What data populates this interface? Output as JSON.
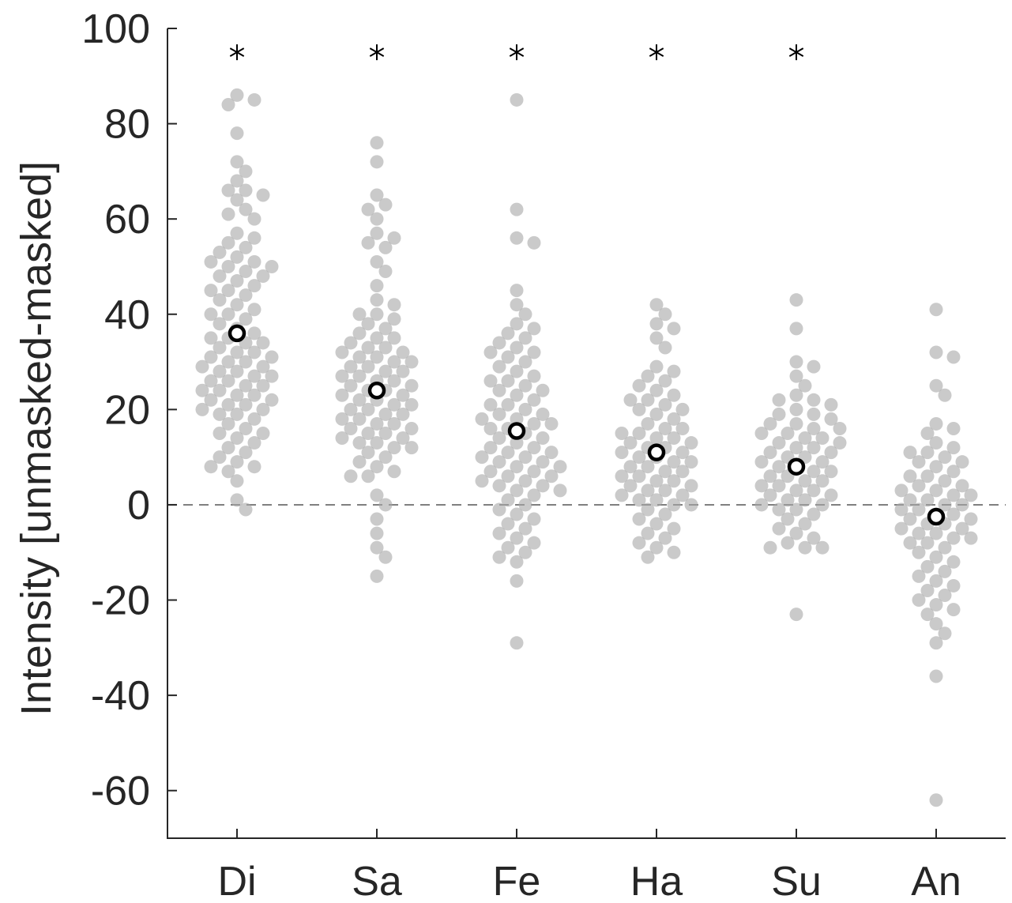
{
  "chart_data": {
    "type": "scatter",
    "title": "",
    "xlabel": "",
    "ylabel": "Intensity [unmasked-masked]",
    "categories": [
      "Di",
      "Sa",
      "Fe",
      "Ha",
      "Su",
      "An"
    ],
    "ylim": [
      -70,
      100
    ],
    "yticks": [
      -60,
      -40,
      -20,
      0,
      20,
      40,
      60,
      80,
      100
    ],
    "ytick_labels": [
      "-60",
      "-40",
      "-20",
      "0",
      "20",
      "40",
      "60",
      "80",
      "100"
    ],
    "reference_line": {
      "y": 0,
      "style": "dashed"
    },
    "means": [
      36,
      24,
      15.5,
      11,
      8,
      -2.5
    ],
    "significant": [
      true,
      true,
      true,
      true,
      true,
      false
    ],
    "significance_marker_y": 95,
    "series": [
      {
        "category": "Di",
        "values": [
          86,
          85,
          84,
          78,
          72,
          70,
          68,
          66,
          66,
          65,
          64,
          62,
          61,
          60,
          57,
          56,
          55,
          54,
          53,
          52,
          51,
          51,
          50,
          50,
          49,
          48,
          48,
          47,
          46,
          45,
          45,
          44,
          43,
          42,
          41,
          40,
          40,
          39,
          38,
          37,
          36,
          35,
          35,
          34,
          34,
          33,
          32,
          32,
          31,
          31,
          30,
          30,
          29,
          29,
          28,
          28,
          27,
          27,
          26,
          26,
          25,
          25,
          24,
          24,
          23,
          23,
          22,
          22,
          21,
          21,
          20,
          20,
          19,
          19,
          18,
          17,
          16,
          15,
          15,
          14,
          13,
          12,
          11,
          10,
          9,
          8,
          8,
          7,
          5,
          1,
          -1
        ]
      },
      {
        "category": "Sa",
        "values": [
          76,
          72,
          65,
          63,
          62,
          60,
          57,
          56,
          55,
          54,
          51,
          49,
          46,
          43,
          42,
          40,
          40,
          39,
          38,
          37,
          36,
          35,
          35,
          34,
          33,
          33,
          32,
          32,
          31,
          31,
          30,
          30,
          29,
          29,
          28,
          28,
          27,
          27,
          26,
          26,
          25,
          25,
          24,
          24,
          23,
          23,
          22,
          22,
          21,
          21,
          20,
          20,
          19,
          19,
          18,
          18,
          17,
          17,
          16,
          16,
          15,
          15,
          14,
          14,
          13,
          13,
          12,
          12,
          11,
          10,
          9,
          8,
          7,
          6,
          6,
          2,
          0,
          -3,
          -6,
          -9,
          -11,
          -15
        ]
      },
      {
        "category": "Fe",
        "values": [
          85,
          62,
          56,
          55,
          45,
          42,
          40,
          38,
          37,
          36,
          35,
          34,
          33,
          32,
          32,
          31,
          30,
          29,
          28,
          27,
          26,
          26,
          25,
          24,
          24,
          23,
          22,
          21,
          21,
          20,
          19,
          19,
          18,
          18,
          17,
          17,
          16,
          16,
          15,
          14,
          14,
          13,
          12,
          12,
          11,
          11,
          10,
          10,
          9,
          9,
          8,
          8,
          7,
          7,
          6,
          6,
          5,
          5,
          4,
          4,
          3,
          3,
          2,
          1,
          0,
          -1,
          -2,
          -3,
          -4,
          -5,
          -6,
          -7,
          -8,
          -9,
          -10,
          -11,
          -12,
          -16,
          -29
        ]
      },
      {
        "category": "Ha",
        "values": [
          42,
          40,
          38,
          37,
          35,
          33,
          29,
          28,
          27,
          26,
          25,
          24,
          23,
          22,
          22,
          21,
          20,
          20,
          19,
          18,
          17,
          16,
          16,
          15,
          15,
          14,
          14,
          13,
          13,
          12,
          12,
          11,
          11,
          10,
          10,
          9,
          9,
          8,
          8,
          7,
          7,
          6,
          6,
          5,
          5,
          4,
          4,
          3,
          3,
          2,
          2,
          1,
          1,
          0,
          0,
          -1,
          -2,
          -3,
          -4,
          -5,
          -6,
          -7,
          -8,
          -9,
          -10,
          -11
        ]
      },
      {
        "category": "Su",
        "values": [
          43,
          37,
          30,
          29,
          27,
          25,
          23,
          22,
          22,
          21,
          20,
          19,
          19,
          18,
          17,
          17,
          16,
          16,
          15,
          15,
          14,
          14,
          13,
          13,
          12,
          12,
          11,
          11,
          10,
          10,
          9,
          9,
          8,
          8,
          7,
          7,
          6,
          6,
          5,
          5,
          4,
          4,
          3,
          3,
          2,
          2,
          1,
          1,
          0,
          0,
          -1,
          -1,
          -2,
          -3,
          -4,
          -5,
          -6,
          -7,
          -8,
          -9,
          -9,
          -9,
          -23
        ]
      },
      {
        "category": "An",
        "values": [
          41,
          32,
          31,
          25,
          23,
          17,
          16,
          15,
          13,
          12,
          11,
          11,
          10,
          9,
          9,
          8,
          7,
          6,
          6,
          5,
          4,
          4,
          3,
          3,
          2,
          2,
          1,
          1,
          0,
          0,
          -1,
          -1,
          -2,
          -2,
          -3,
          -3,
          -4,
          -4,
          -5,
          -5,
          -6,
          -6,
          -7,
          -7,
          -8,
          -8,
          -9,
          -10,
          -11,
          -12,
          -13,
          -14,
          -15,
          -16,
          -17,
          -18,
          -19,
          -20,
          -21,
          -22,
          -23,
          -25,
          -27,
          -29,
          -36,
          -62
        ]
      }
    ]
  }
}
